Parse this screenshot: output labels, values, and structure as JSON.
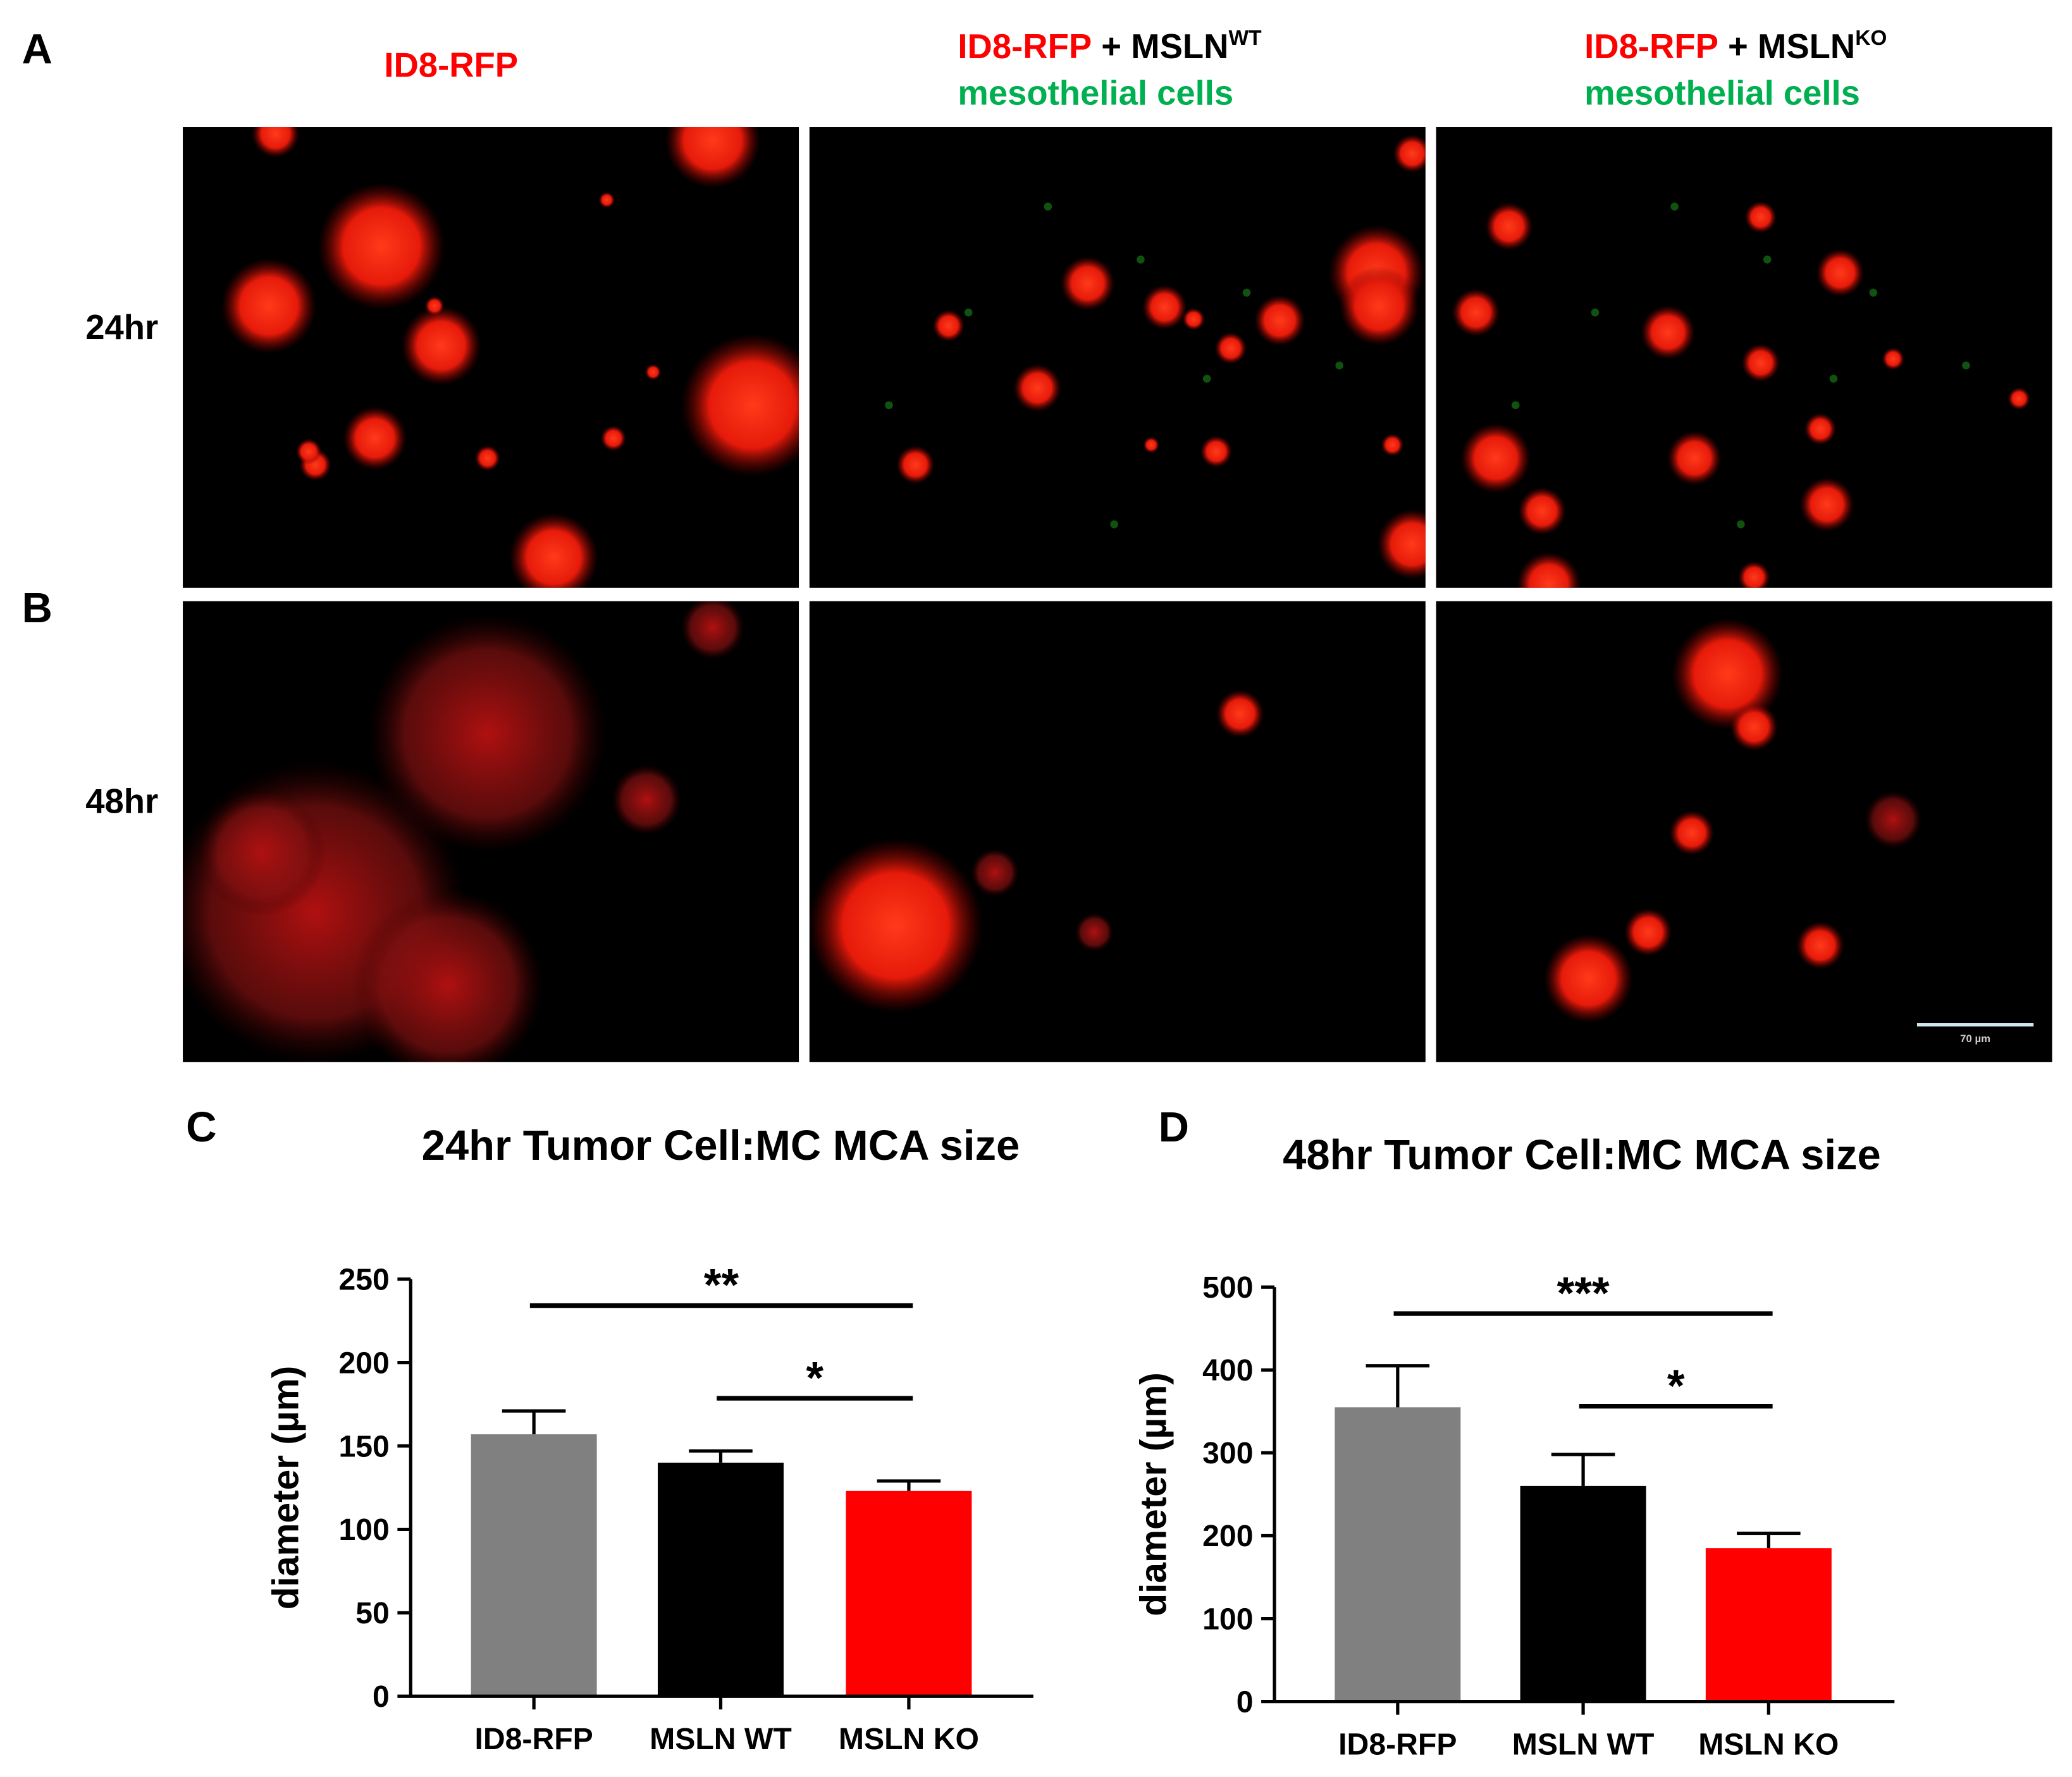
{
  "panel_labels": [
    "A",
    "B",
    "C",
    "D"
  ],
  "columns": [
    {
      "label": "ID8-RFP"
    },
    {
      "label": "ID8-RFP",
      "joiner": " + MSLN",
      "superscript": "WT",
      "sub_label": "mesothelial cells"
    },
    {
      "label": "ID8-RFP",
      "joiner": " + MSLN",
      "superscript": "KO",
      "sub_label": "mesothelial cells"
    }
  ],
  "rows": [
    "24hr",
    "48hr"
  ],
  "scale_bar": "70 µm",
  "chart_data": [
    {
      "type": "bar",
      "title": "24hr Tumor Cell:MC MCA size",
      "y_label": "diameter (µm)",
      "categories": [
        "ID8-RFP",
        "MSLN WT",
        "MSLN KO"
      ],
      "values": [
        157,
        140,
        123
      ],
      "errors": [
        14,
        7,
        6
      ],
      "colors": [
        "#808080",
        "#000000",
        "#ff0000"
      ],
      "ylim": [
        0,
        250
      ],
      "yticks": [
        0,
        50,
        100,
        150,
        200,
        250
      ],
      "significance": [
        {
          "text": "**",
          "from": "ID8-RFP",
          "to": "MSLN KO"
        },
        {
          "text": "*",
          "from": "MSLN WT",
          "to": "MSLN KO"
        }
      ]
    },
    {
      "type": "bar",
      "title": "48hr Tumor Cell:MC MCA size",
      "y_label": "diameter (µm)",
      "categories": [
        "ID8-RFP",
        "MSLN WT",
        "MSLN KO"
      ],
      "values": [
        355,
        260,
        185
      ],
      "errors": [
        50,
        38,
        18
      ],
      "colors": [
        "#808080",
        "#000000",
        "#ff0000"
      ],
      "ylim": [
        0,
        500
      ],
      "yticks": [
        0,
        100,
        200,
        300,
        400,
        500
      ],
      "significance": [
        {
          "text": "***",
          "from": "ID8-RFP",
          "to": "MSLN KO"
        },
        {
          "text": "*",
          "from": "MSLN WT",
          "to": "MSLN KO"
        }
      ]
    }
  ]
}
